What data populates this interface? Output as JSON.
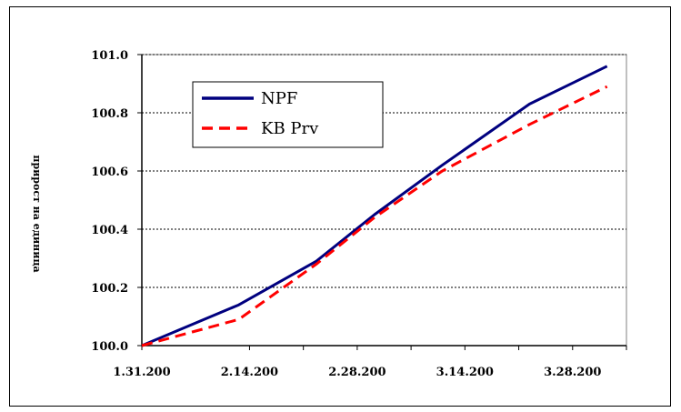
{
  "chart_data": {
    "type": "line",
    "title": "",
    "ylabel": "прирост на единица",
    "xlabel": "",
    "x_tick_labels": [
      "1.31.200",
      "2.14.200",
      "2.28.200",
      "3.14.200",
      "3.28.200"
    ],
    "x_points": [
      0,
      14,
      21,
      28,
      35,
      42,
      49,
      56,
      63
    ],
    "ylim": [
      100.0,
      101.0
    ],
    "y_ticks": [
      "100.0",
      "100.2",
      "100.4",
      "100.6",
      "100.8",
      "101.0"
    ],
    "grid": true,
    "legend_position": "top-left",
    "series": [
      {
        "name": "NPF",
        "color": "#00007f",
        "dash": "solid",
        "values": [
          100.0,
          100.14,
          100.29,
          100.45,
          100.62,
          100.83,
          100.96
        ]
      },
      {
        "name": "KB Prv",
        "color": "#ff0000",
        "dash": "dashed",
        "values": [
          100.0,
          100.09,
          100.28,
          100.44,
          100.6,
          100.76,
          100.89
        ]
      }
    ],
    "series_x_index": [
      0,
      14,
      21,
      28,
      35,
      42,
      49
    ]
  }
}
